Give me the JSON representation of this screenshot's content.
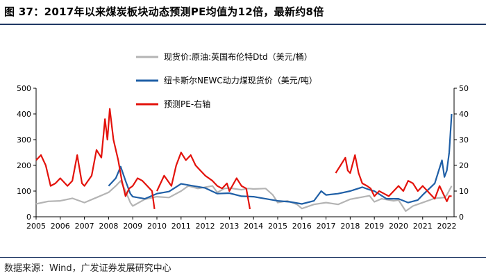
{
  "header": {
    "title": "图 37：2017年以来煤炭板块动态预测PE均值为12倍，最新约8倍"
  },
  "footer": {
    "source": "数据来源：Wind，广发证券发展研究中心"
  },
  "chart_data": {
    "type": "line",
    "title": "图 37：2017年以来煤炭板块动态预测PE均值为12倍，最新约8倍",
    "xlabel": "",
    "ylabel_left": "",
    "ylabel_right": "",
    "x_ticks": [
      "2005",
      "2006",
      "2007",
      "2008",
      "2009",
      "2010",
      "2011",
      "2012",
      "2013",
      "2014",
      "2015",
      "2016",
      "2017",
      "2018",
      "2019",
      "2020",
      "2021",
      "2022"
    ],
    "xlim": [
      2005.0,
      2022.3
    ],
    "ylim_left": [
      0,
      500
    ],
    "y_ticks_left": [
      0,
      100,
      200,
      300,
      400,
      500
    ],
    "ylim_right": [
      0,
      50
    ],
    "y_ticks_right": [
      0,
      10,
      20,
      30,
      40,
      50
    ],
    "legend_position": "top-center",
    "series": [
      {
        "name": "现货价:原油:英国布伦特Dtd（美元/桶）",
        "axis": "left",
        "color": "#b4b4b4",
        "points": [
          [
            2005.0,
            50
          ],
          [
            2005.5,
            60
          ],
          [
            2006.0,
            62
          ],
          [
            2006.5,
            72
          ],
          [
            2007.0,
            55
          ],
          [
            2007.5,
            75
          ],
          [
            2008.0,
            95
          ],
          [
            2008.3,
            120
          ],
          [
            2008.5,
            140
          ],
          [
            2008.7,
            100
          ],
          [
            2008.9,
            55
          ],
          [
            2009.0,
            42
          ],
          [
            2009.5,
            68
          ],
          [
            2010.0,
            78
          ],
          [
            2010.5,
            75
          ],
          [
            2011.0,
            100
          ],
          [
            2011.3,
            120
          ],
          [
            2011.7,
            110
          ],
          [
            2012.0,
            115
          ],
          [
            2012.3,
            120
          ],
          [
            2012.5,
            95
          ],
          [
            2012.8,
            110
          ],
          [
            2013.0,
            112
          ],
          [
            2013.5,
            105
          ],
          [
            2013.8,
            110
          ],
          [
            2014.0,
            108
          ],
          [
            2014.5,
            110
          ],
          [
            2014.8,
            85
          ],
          [
            2015.0,
            55
          ],
          [
            2015.4,
            62
          ],
          [
            2015.8,
            48
          ],
          [
            2016.0,
            32
          ],
          [
            2016.5,
            48
          ],
          [
            2017.0,
            55
          ],
          [
            2017.5,
            48
          ],
          [
            2018.0,
            68
          ],
          [
            2018.8,
            82
          ],
          [
            2019.0,
            58
          ],
          [
            2019.3,
            70
          ],
          [
            2019.8,
            62
          ],
          [
            2020.0,
            65
          ],
          [
            2020.3,
            22
          ],
          [
            2020.6,
            42
          ],
          [
            2021.0,
            55
          ],
          [
            2021.5,
            72
          ],
          [
            2021.9,
            75
          ],
          [
            2022.0,
            85
          ],
          [
            2022.2,
            120
          ]
        ]
      },
      {
        "name": "纽卡斯尔NEWC动力煤现货价（美元/吨）",
        "axis": "left",
        "color": "#1f5fa6",
        "points": [
          [
            2008.0,
            120
          ],
          [
            2008.3,
            150
          ],
          [
            2008.5,
            195
          ],
          [
            2008.7,
            140
          ],
          [
            2008.9,
            90
          ],
          [
            2009.0,
            78
          ],
          [
            2009.5,
            70
          ],
          [
            2010.0,
            90
          ],
          [
            2010.5,
            98
          ],
          [
            2011.0,
            128
          ],
          [
            2011.5,
            120
          ],
          [
            2012.0,
            112
          ],
          [
            2012.5,
            90
          ],
          [
            2013.0,
            92
          ],
          [
            2013.5,
            80
          ],
          [
            2014.0,
            78
          ],
          [
            2014.5,
            70
          ],
          [
            2015.0,
            62
          ],
          [
            2015.5,
            58
          ],
          [
            2016.0,
            50
          ],
          [
            2016.5,
            62
          ],
          [
            2016.8,
            100
          ],
          [
            2017.0,
            85
          ],
          [
            2017.5,
            90
          ],
          [
            2018.0,
            100
          ],
          [
            2018.5,
            115
          ],
          [
            2018.8,
            105
          ],
          [
            2019.0,
            100
          ],
          [
            2019.5,
            70
          ],
          [
            2020.0,
            70
          ],
          [
            2020.4,
            55
          ],
          [
            2020.8,
            65
          ],
          [
            2021.0,
            85
          ],
          [
            2021.5,
            130
          ],
          [
            2021.8,
            220
          ],
          [
            2021.9,
            155
          ],
          [
            2022.0,
            180
          ],
          [
            2022.1,
            250
          ],
          [
            2022.2,
            400
          ]
        ]
      },
      {
        "name": "预测PE-右轴",
        "axis": "right",
        "color": "#e3120b",
        "segments": [
          [
            [
              2005.0,
              22
            ],
            [
              2005.2,
              24
            ],
            [
              2005.4,
              20
            ],
            [
              2005.6,
              12
            ],
            [
              2005.8,
              13
            ],
            [
              2006.0,
              15
            ],
            [
              2006.3,
              12
            ],
            [
              2006.5,
              14
            ],
            [
              2006.7,
              24
            ],
            [
              2006.9,
              13
            ],
            [
              2007.0,
              12
            ],
            [
              2007.3,
              16
            ],
            [
              2007.5,
              26
            ],
            [
              2007.7,
              23
            ],
            [
              2007.85,
              38
            ],
            [
              2007.95,
              30
            ],
            [
              2008.05,
              42
            ],
            [
              2008.2,
              30
            ],
            [
              2008.4,
              22
            ],
            [
              2008.55,
              14
            ],
            [
              2008.7,
              8
            ],
            [
              2008.85,
              11
            ],
            [
              2009.0,
              12
            ],
            [
              2009.2,
              15
            ],
            [
              2009.4,
              14
            ],
            [
              2009.6,
              12
            ],
            [
              2009.8,
              10
            ],
            [
              2009.9,
              3
            ]
          ],
          [
            [
              2010.0,
              10
            ],
            [
              2010.3,
              16
            ],
            [
              2010.6,
              12
            ],
            [
              2010.8,
              20
            ],
            [
              2011.0,
              25
            ],
            [
              2011.2,
              22
            ],
            [
              2011.4,
              24
            ],
            [
              2011.6,
              20
            ],
            [
              2011.8,
              18
            ],
            [
              2012.0,
              16
            ],
            [
              2012.3,
              14
            ],
            [
              2012.5,
              12
            ],
            [
              2012.7,
              11
            ],
            [
              2012.9,
              13
            ],
            [
              2013.0,
              10
            ],
            [
              2013.3,
              15
            ],
            [
              2013.5,
              12
            ],
            [
              2013.7,
              11
            ],
            [
              2013.85,
              3
            ]
          ],
          [
            [
              2017.4,
              17
            ],
            [
              2017.6,
              20
            ],
            [
              2017.8,
              23
            ],
            [
              2017.9,
              18
            ],
            [
              2018.0,
              17
            ],
            [
              2018.2,
              24
            ],
            [
              2018.35,
              17
            ],
            [
              2018.5,
              13
            ],
            [
              2018.7,
              12
            ],
            [
              2018.85,
              11
            ],
            [
              2019.0,
              8
            ],
            [
              2019.2,
              10
            ],
            [
              2019.4,
              9
            ],
            [
              2019.6,
              8
            ],
            [
              2019.8,
              10
            ],
            [
              2020.0,
              12
            ],
            [
              2020.2,
              10
            ],
            [
              2020.4,
              14
            ],
            [
              2020.6,
              13
            ],
            [
              2020.8,
              10
            ],
            [
              2021.0,
              12
            ],
            [
              2021.3,
              9
            ],
            [
              2021.5,
              7
            ],
            [
              2021.7,
              12
            ],
            [
              2021.9,
              8
            ],
            [
              2022.0,
              6
            ],
            [
              2022.1,
              8
            ],
            [
              2022.2,
              8
            ]
          ]
        ]
      }
    ]
  }
}
